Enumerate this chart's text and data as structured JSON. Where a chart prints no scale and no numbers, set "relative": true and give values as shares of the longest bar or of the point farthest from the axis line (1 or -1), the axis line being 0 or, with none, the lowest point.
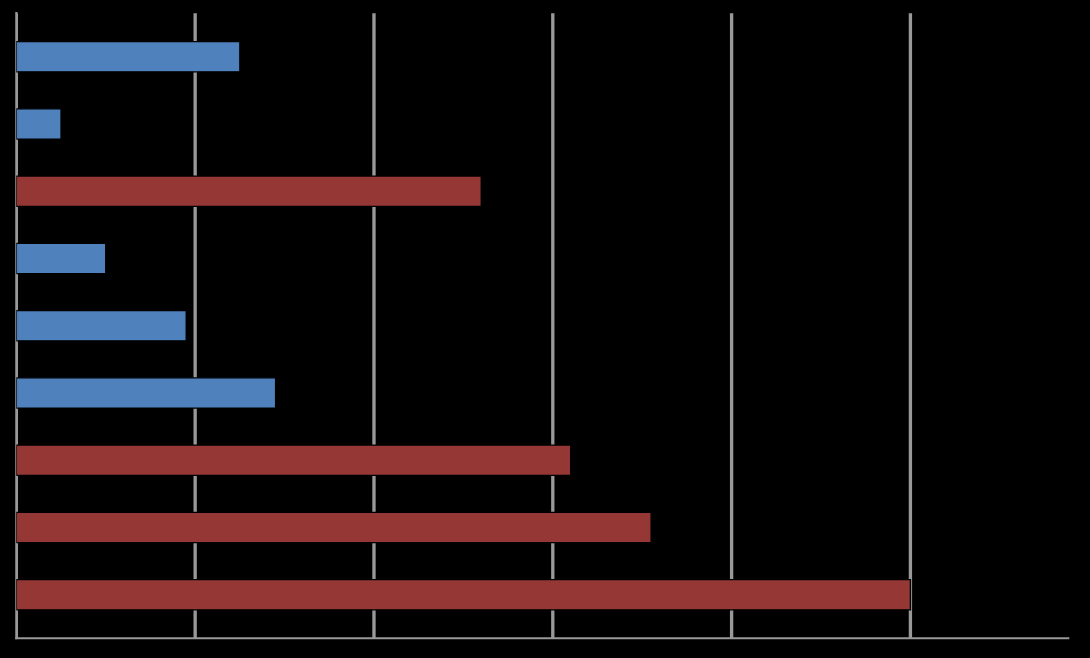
{
  "chart_data": {
    "type": "bar",
    "orientation": "horizontal",
    "relative": true,
    "categories": [
      null,
      null,
      null,
      null,
      null,
      null,
      null,
      null,
      null
    ],
    "values": [
      0.25,
      0.05,
      0.52,
      0.1,
      0.19,
      0.29,
      0.62,
      0.71,
      1.0
    ],
    "colors": [
      "#4f81bd",
      "#4f81bd",
      "#953735",
      "#4f81bd",
      "#4f81bd",
      "#4f81bd",
      "#953735",
      "#953735",
      "#953735"
    ],
    "grid": "x",
    "tick_labels": false,
    "legend": false
  }
}
